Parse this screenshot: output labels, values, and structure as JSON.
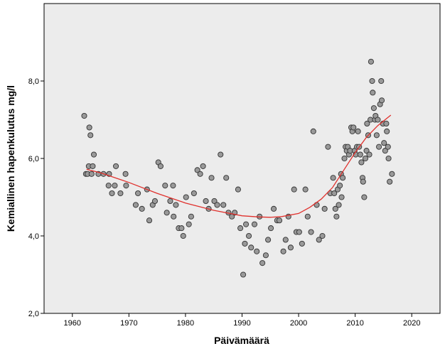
{
  "chart_data": {
    "type": "scatter",
    "xlabel": "Päivämäärä",
    "ylabel": "Kemiallinen hapenkulutus mg/l",
    "xlim": [
      1955,
      2025
    ],
    "ylim": [
      2.0,
      10.0
    ],
    "x_ticks": [
      1960,
      1970,
      1980,
      1990,
      2000,
      2010,
      2020
    ],
    "x_tick_labels": [
      "1960",
      "1970",
      "1980",
      "1990",
      "2000",
      "2010",
      "2020"
    ],
    "y_ticks": [
      2.0,
      4.0,
      6.0,
      8.0
    ],
    "y_tick_labels": [
      "2,0",
      "4,0",
      "6,0",
      "8,0"
    ],
    "grid": false,
    "plot_background": "#ececec",
    "point_fill": "#999999",
    "point_stroke": "#333333",
    "fit_color": "#e0302c",
    "points": [
      [
        1962.1,
        7.1
      ],
      [
        1962.4,
        5.6
      ],
      [
        1962.7,
        5.6
      ],
      [
        1962.9,
        5.8
      ],
      [
        1963.0,
        6.8
      ],
      [
        1963.2,
        6.6
      ],
      [
        1963.4,
        5.6
      ],
      [
        1963.6,
        5.8
      ],
      [
        1963.8,
        6.1
      ],
      [
        1964.6,
        5.6
      ],
      [
        1965.5,
        5.6
      ],
      [
        1966.4,
        5.3
      ],
      [
        1966.5,
        5.6
      ],
      [
        1967.0,
        5.1
      ],
      [
        1967.5,
        5.3
      ],
      [
        1967.7,
        5.8
      ],
      [
        1968.5,
        5.1
      ],
      [
        1969.4,
        5.6
      ],
      [
        1969.5,
        5.3
      ],
      [
        1971.2,
        4.8
      ],
      [
        1971.6,
        5.1
      ],
      [
        1972.3,
        4.7
      ],
      [
        1973.2,
        5.2
      ],
      [
        1973.6,
        4.4
      ],
      [
        1974.2,
        4.8
      ],
      [
        1974.6,
        4.9
      ],
      [
        1975.2,
        5.9
      ],
      [
        1975.6,
        5.8
      ],
      [
        1976.4,
        5.3
      ],
      [
        1976.7,
        4.6
      ],
      [
        1977.3,
        4.9
      ],
      [
        1977.8,
        5.3
      ],
      [
        1977.9,
        4.5
      ],
      [
        1978.3,
        4.8
      ],
      [
        1978.8,
        4.2
      ],
      [
        1979.3,
        4.2
      ],
      [
        1979.6,
        4.0
      ],
      [
        1980.1,
        5.0
      ],
      [
        1980.6,
        4.3
      ],
      [
        1981.0,
        4.5
      ],
      [
        1981.5,
        5.1
      ],
      [
        1982.1,
        5.7
      ],
      [
        1982.6,
        5.6
      ],
      [
        1983.1,
        5.8
      ],
      [
        1983.6,
        4.9
      ],
      [
        1984.1,
        4.7
      ],
      [
        1984.6,
        5.5
      ],
      [
        1985.1,
        4.9
      ],
      [
        1985.6,
        4.8
      ],
      [
        1986.2,
        6.1
      ],
      [
        1986.7,
        4.8
      ],
      [
        1987.2,
        5.5
      ],
      [
        1987.6,
        4.6
      ],
      [
        1988.2,
        4.5
      ],
      [
        1988.7,
        4.6
      ],
      [
        1989.3,
        5.2
      ],
      [
        1989.7,
        4.2
      ],
      [
        1990.2,
        3.0
      ],
      [
        1990.5,
        3.8
      ],
      [
        1990.7,
        4.3
      ],
      [
        1991.2,
        4.0
      ],
      [
        1991.6,
        3.7
      ],
      [
        1992.2,
        4.3
      ],
      [
        1992.6,
        3.6
      ],
      [
        1993.1,
        4.5
      ],
      [
        1993.6,
        3.3
      ],
      [
        1994.2,
        3.5
      ],
      [
        1994.6,
        3.9
      ],
      [
        1995.1,
        4.2
      ],
      [
        1995.6,
        4.7
      ],
      [
        1996.2,
        4.4
      ],
      [
        1996.6,
        4.4
      ],
      [
        1997.3,
        3.6
      ],
      [
        1997.7,
        3.9
      ],
      [
        1998.2,
        4.5
      ],
      [
        1998.6,
        3.7
      ],
      [
        1999.2,
        5.2
      ],
      [
        1999.6,
        4.1
      ],
      [
        2000.1,
        4.1
      ],
      [
        2000.6,
        3.8
      ],
      [
        2001.2,
        5.2
      ],
      [
        2001.6,
        4.5
      ],
      [
        2002.2,
        4.1
      ],
      [
        2002.6,
        6.7
      ],
      [
        2003.2,
        4.8
      ],
      [
        2003.6,
        3.9
      ],
      [
        2004.2,
        4.0
      ],
      [
        2004.6,
        4.7
      ],
      [
        2005.2,
        6.3
      ],
      [
        2005.6,
        5.1
      ],
      [
        2006.1,
        5.5
      ],
      [
        2006.3,
        5.1
      ],
      [
        2006.5,
        4.7
      ],
      [
        2006.7,
        4.5
      ],
      [
        2006.9,
        5.2
      ],
      [
        2007.1,
        4.8
      ],
      [
        2007.3,
        5.3
      ],
      [
        2007.5,
        5.6
      ],
      [
        2007.6,
        5.0
      ],
      [
        2007.8,
        5.5
      ],
      [
        2008.1,
        6.0
      ],
      [
        2008.3,
        6.3
      ],
      [
        2008.5,
        6.2
      ],
      [
        2008.7,
        6.3
      ],
      [
        2008.9,
        6.1
      ],
      [
        2009.1,
        6.2
      ],
      [
        2009.3,
        6.8
      ],
      [
        2009.5,
        6.7
      ],
      [
        2009.7,
        6.8
      ],
      [
        2009.9,
        6.2
      ],
      [
        2010.1,
        6.1
      ],
      [
        2010.3,
        6.3
      ],
      [
        2010.5,
        6.7
      ],
      [
        2010.7,
        6.3
      ],
      [
        2010.9,
        6.1
      ],
      [
        2011.1,
        5.9
      ],
      [
        2011.3,
        5.5
      ],
      [
        2011.4,
        5.4
      ],
      [
        2011.6,
        5.0
      ],
      [
        2011.8,
        6.0
      ],
      [
        2012.0,
        6.2
      ],
      [
        2012.1,
        6.9
      ],
      [
        2012.3,
        6.6
      ],
      [
        2012.5,
        6.1
      ],
      [
        2012.7,
        7.0
      ],
      [
        2012.8,
        8.5
      ],
      [
        2013.0,
        8.0
      ],
      [
        2013.1,
        7.7
      ],
      [
        2013.3,
        7.3
      ],
      [
        2013.5,
        7.0
      ],
      [
        2013.6,
        7.1
      ],
      [
        2013.8,
        6.6
      ],
      [
        2014.0,
        7.0
      ],
      [
        2014.2,
        6.3
      ],
      [
        2014.4,
        7.4
      ],
      [
        2014.6,
        8.0
      ],
      [
        2014.7,
        7.5
      ],
      [
        2014.9,
        6.9
      ],
      [
        2015.1,
        6.4
      ],
      [
        2015.3,
        6.2
      ],
      [
        2015.5,
        6.9
      ],
      [
        2015.6,
        6.7
      ],
      [
        2015.8,
        6.3
      ],
      [
        2015.9,
        6.0
      ],
      [
        2016.1,
        5.4
      ],
      [
        2016.5,
        5.6
      ]
    ],
    "fit_line": [
      [
        1962.5,
        5.72
      ],
      [
        1965,
        5.63
      ],
      [
        1970,
        5.38
      ],
      [
        1975,
        5.1
      ],
      [
        1980,
        4.85
      ],
      [
        1985,
        4.66
      ],
      [
        1990,
        4.52
      ],
      [
        1993,
        4.49
      ],
      [
        1995,
        4.48
      ],
      [
        1997,
        4.5
      ],
      [
        2000,
        4.58
      ],
      [
        2002,
        4.74
      ],
      [
        2004,
        4.95
      ],
      [
        2006,
        5.25
      ],
      [
        2008,
        5.7
      ],
      [
        2010,
        6.15
      ],
      [
        2012,
        6.55
      ],
      [
        2014,
        6.85
      ],
      [
        2016.3,
        7.12
      ]
    ]
  }
}
